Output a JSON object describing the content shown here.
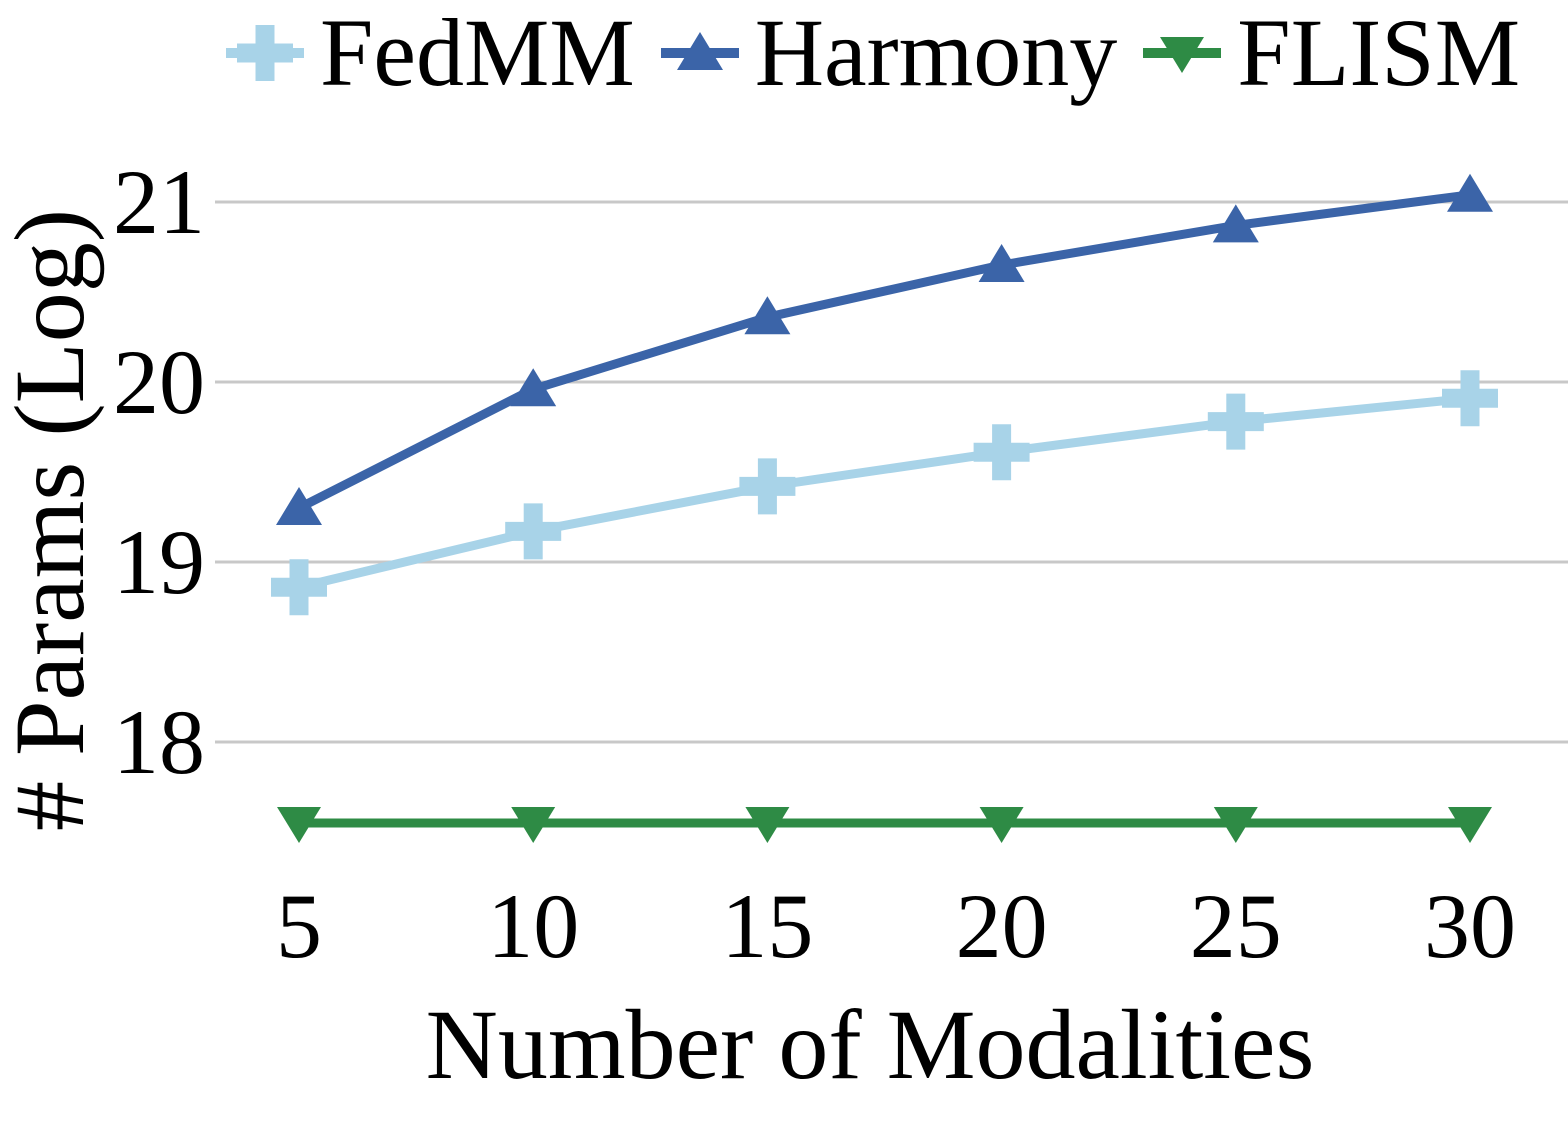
{
  "figure": {
    "background": "#ffffff",
    "text_color": "#000000"
  },
  "chart_data": {
    "type": "line",
    "title": "",
    "xlabel": "Number of Modalities",
    "ylabel": "# Params (Log)",
    "x": [
      5,
      10,
      15,
      20,
      25,
      30
    ],
    "xticks": [
      "5",
      "10",
      "15",
      "20",
      "25",
      "30"
    ],
    "yticks": [
      "18",
      "19",
      "20",
      "21"
    ],
    "ytick_values": [
      18,
      19,
      20,
      21
    ],
    "ylim": [
      17.25,
      21.3
    ],
    "xlim": [
      3.2,
      32.1
    ],
    "grid": "horizontal-only",
    "gridline_color": "#C8C8C8",
    "legend_position": "top",
    "series": [
      {
        "name": "FedMM",
        "color": "#A8D3E8",
        "marker": "plus",
        "values": [
          18.86,
          19.17,
          19.42,
          19.61,
          19.78,
          19.91
        ]
      },
      {
        "name": "Harmony",
        "color": "#3B64A8",
        "marker": "triangle-up",
        "values": [
          19.3,
          19.96,
          20.36,
          20.65,
          20.87,
          21.04
        ]
      },
      {
        "name": "FLISM",
        "color": "#2E8B45",
        "marker": "triangle-down",
        "values": [
          17.55,
          17.55,
          17.55,
          17.55,
          17.55,
          17.55
        ]
      }
    ]
  }
}
